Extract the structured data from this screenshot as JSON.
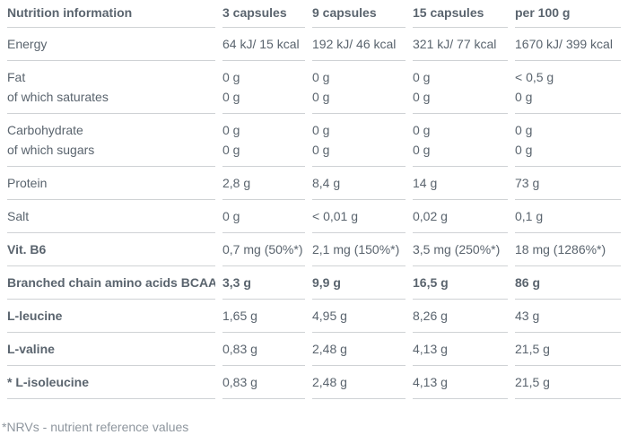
{
  "table": {
    "columns": [
      "Nutrition information",
      "3 capsules",
      "9 capsules",
      "15 capsules",
      "per 100 g"
    ],
    "rows": [
      {
        "label": "Energy",
        "values": [
          "64 kJ/ 15 kcal",
          "192 kJ/ 46 kcal",
          "321 kJ/ 77 kcal",
          "1670 kJ/ 399 kcal"
        ]
      },
      {
        "label": "Fat",
        "values": [
          "0 g",
          "0 g",
          "0 g",
          "< 0,5 g"
        ],
        "group": "start"
      },
      {
        "label": "of which saturates",
        "values": [
          "0 g",
          "0 g",
          "0 g",
          "0 g"
        ],
        "group": "end"
      },
      {
        "label": "Carbohydrate",
        "values": [
          "0 g",
          "0 g",
          "0 g",
          "0 g"
        ],
        "group": "start"
      },
      {
        "label": "of which sugars",
        "values": [
          "0 g",
          "0 g",
          "0 g",
          "0 g"
        ],
        "group": "end"
      },
      {
        "label": "Protein",
        "values": [
          "2,8 g",
          "8,4 g",
          "14 g",
          "73 g"
        ]
      },
      {
        "label": "Salt",
        "values": [
          "0 g",
          "< 0,01 g",
          "0,02 g",
          "0,1 g"
        ]
      },
      {
        "label": "Vit. B6",
        "values": [
          "0,7 mg (50%*)",
          "2,1 mg (150%*)",
          "3,5 mg (250%*)",
          "18 mg (1286%*)"
        ],
        "bold_label": true
      },
      {
        "label": "Branched chain amino acids BCAA",
        "values": [
          "3,3 g",
          "9,9 g",
          "16,5 g",
          "86 g"
        ],
        "bold_label": true,
        "bold_values": true
      },
      {
        "label": "L-leucine",
        "values": [
          "1,65 g",
          "4,95 g",
          "8,26 g",
          "43 g"
        ],
        "bold_label": true
      },
      {
        "label": "L-valine",
        "values": [
          "0,83 g",
          "2,48 g",
          "4,13 g",
          "21,5 g"
        ],
        "bold_label": true
      },
      {
        "label": "* L-isoleucine",
        "values": [
          "0,83 g",
          "2,48 g",
          "4,13 g",
          "21,5 g"
        ],
        "bold_label": true
      }
    ],
    "footnote": "*NRVs - nutrient reference values"
  },
  "colors": {
    "text": "#5a646e",
    "border": "#cfd2d5",
    "footnote_text": "#8e969e",
    "background": "#ffffff"
  }
}
